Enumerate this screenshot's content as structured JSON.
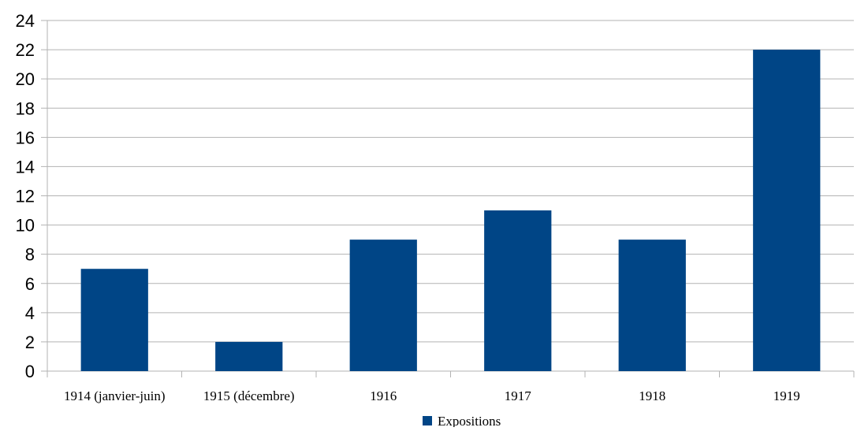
{
  "chart_data": {
    "type": "bar",
    "categories": [
      "1914 (janvier-juin)",
      "1915 (décembre)",
      "1916",
      "1917",
      "1918",
      "1919"
    ],
    "series": [
      {
        "name": "Expositions",
        "values": [
          7,
          2,
          9,
          11,
          9,
          22
        ]
      }
    ],
    "title": "",
    "xlabel": "",
    "ylabel": "",
    "ylim": [
      0,
      24
    ],
    "yticks": [
      "0",
      "2",
      "4",
      "6",
      "8",
      "10",
      "12",
      "14",
      "16",
      "18",
      "20",
      "22",
      "24"
    ],
    "grid": true,
    "legend_position": "bottom",
    "colors": {
      "bar": "#004586",
      "grid": "#b3b3b3"
    }
  }
}
